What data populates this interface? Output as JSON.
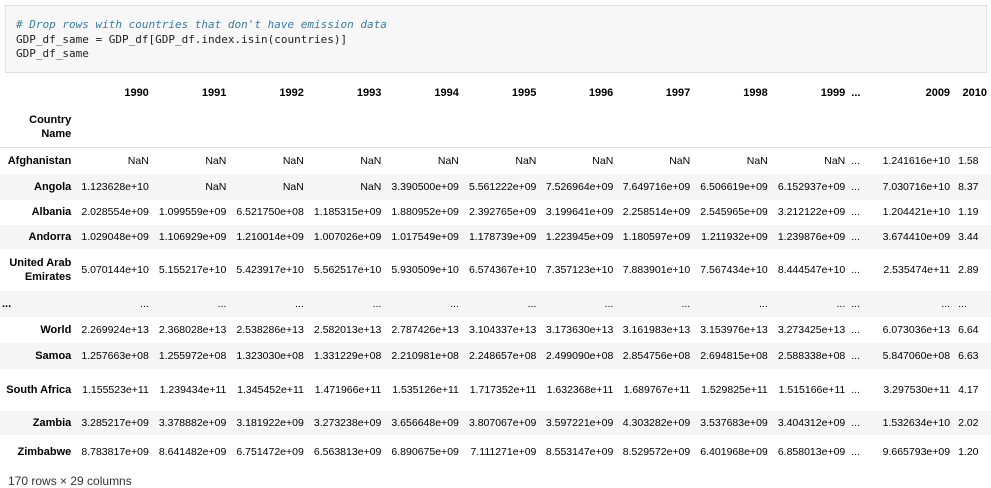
{
  "code": {
    "comment": "# Drop rows with countries that don't have emission data",
    "line1": "GDP_df_same = GDP_df[GDP_df.index.isin(countries)]",
    "line2": "GDP_df_same"
  },
  "table": {
    "index_name": "Country Name",
    "columns": [
      "1990",
      "1991",
      "1992",
      "1993",
      "1994",
      "1995",
      "1996",
      "1997",
      "1998",
      "1999",
      "...",
      "2009",
      "2010"
    ],
    "rows": [
      {
        "name": "Afghanistan",
        "values": [
          "NaN",
          "NaN",
          "NaN",
          "NaN",
          "NaN",
          "NaN",
          "NaN",
          "NaN",
          "NaN",
          "NaN",
          "...",
          "1.241616e+10",
          "1.58"
        ]
      },
      {
        "name": "Angola",
        "values": [
          "1.123628e+10",
          "NaN",
          "NaN",
          "NaN",
          "3.390500e+09",
          "5.561222e+09",
          "7.526964e+09",
          "7.649716e+09",
          "6.506619e+09",
          "6.152937e+09",
          "...",
          "7.030716e+10",
          "8.37"
        ]
      },
      {
        "name": "Albania",
        "values": [
          "2.028554e+09",
          "1.099559e+09",
          "6.521750e+08",
          "1.185315e+09",
          "1.880952e+09",
          "2.392765e+09",
          "3.199641e+09",
          "2.258514e+09",
          "2.545965e+09",
          "3.212122e+09",
          "...",
          "1.204421e+10",
          "1.19"
        ]
      },
      {
        "name": "Andorra",
        "values": [
          "1.029048e+09",
          "1.106929e+09",
          "1.210014e+09",
          "1.007026e+09",
          "1.017549e+09",
          "1.178739e+09",
          "1.223945e+09",
          "1.180597e+09",
          "1.211932e+09",
          "1.239876e+09",
          "...",
          "3.674410e+09",
          "3.44"
        ]
      },
      {
        "name": "United Arab Emirates",
        "values": [
          "5.070144e+10",
          "5.155217e+10",
          "5.423917e+10",
          "5.562517e+10",
          "5.930509e+10",
          "6.574367e+10",
          "7.357123e+10",
          "7.883901e+10",
          "7.567434e+10",
          "8.444547e+10",
          "...",
          "2.535474e+11",
          "2.89"
        ]
      },
      {
        "name": "...",
        "values": [
          "...",
          "...",
          "...",
          "...",
          "...",
          "...",
          "...",
          "...",
          "...",
          "...",
          "...",
          "...",
          "..."
        ]
      },
      {
        "name": "World",
        "values": [
          "2.269924e+13",
          "2.368028e+13",
          "2.538286e+13",
          "2.582013e+13",
          "2.787426e+13",
          "3.104337e+13",
          "3.173630e+13",
          "3.161983e+13",
          "3.153976e+13",
          "3.273425e+13",
          "...",
          "6.073036e+13",
          "6.64"
        ]
      },
      {
        "name": "Samoa",
        "values": [
          "1.257663e+08",
          "1.255972e+08",
          "1.323030e+08",
          "1.331229e+08",
          "2.210981e+08",
          "2.248657e+08",
          "2.499090e+08",
          "2.854756e+08",
          "2.694815e+08",
          "2.588338e+08",
          "...",
          "5.847060e+08",
          "6.63"
        ]
      },
      {
        "name": "South Africa",
        "values": [
          "1.155523e+11",
          "1.239434e+11",
          "1.345452e+11",
          "1.471966e+11",
          "1.535126e+11",
          "1.717352e+11",
          "1.632368e+11",
          "1.689767e+11",
          "1.529825e+11",
          "1.515166e+11",
          "...",
          "3.297530e+11",
          "4.17"
        ]
      },
      {
        "name": "Zambia",
        "values": [
          "3.285217e+09",
          "3.378882e+09",
          "3.181922e+09",
          "3.273238e+09",
          "3.656648e+09",
          "3.807067e+09",
          "3.597221e+09",
          "4.303282e+09",
          "3.537683e+09",
          "3.404312e+09",
          "...",
          "1.532634e+10",
          "2.02"
        ]
      },
      {
        "name": "Zimbabwe",
        "values": [
          "8.783817e+09",
          "8.641482e+09",
          "6.751472e+09",
          "6.563813e+09",
          "6.890675e+09",
          "7.111271e+09",
          "8.553147e+09",
          "8.529572e+09",
          "6.401968e+09",
          "6.858013e+09",
          "...",
          "9.665793e+09",
          "1.20"
        ]
      }
    ]
  },
  "shape_text": "170 rows × 29 columns"
}
